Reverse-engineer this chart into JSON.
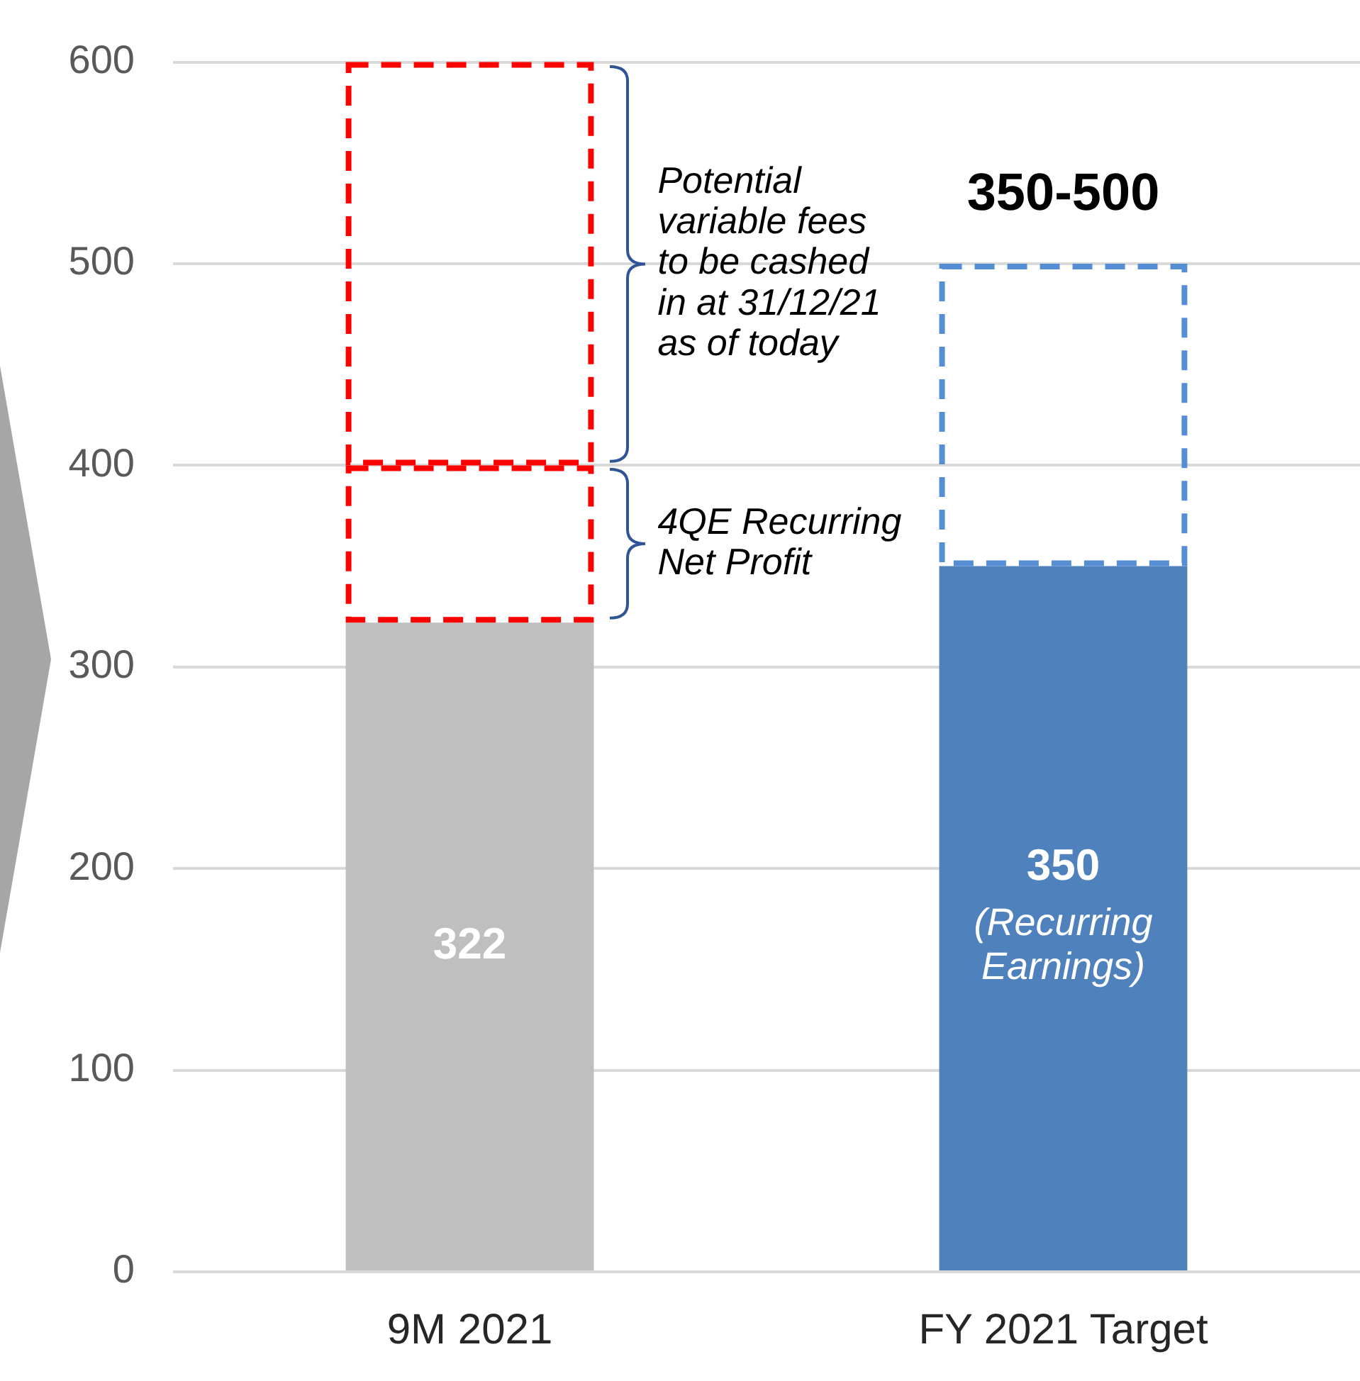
{
  "chart_data": {
    "type": "bar",
    "categories": [
      "9M 2021",
      "FY 2021 Target"
    ],
    "stacked": true,
    "series": [
      {
        "colors": [
          "#bfbfbf",
          "#4f81bd"
        ],
        "values": [
          322,
          350
        ],
        "value_labels": [
          "322",
          "350\n(Recurring\nEarnings)"
        ]
      },
      {
        "colors": [
          "#ff0000",
          "#558ed5"
        ],
        "values": [
          78,
          150
        ],
        "line_style": "dashed"
      },
      {
        "color": "#ff0000",
        "values": [
          200,
          null
        ],
        "line_style": "dashed"
      }
    ],
    "ylim": [
      0,
      600
    ],
    "yticks": [
      0,
      100,
      200,
      300,
      400,
      500,
      600
    ],
    "grid": "y",
    "totals": [
      null,
      "350-500"
    ],
    "annotations": [
      "Potential\nvariable fees\nto be cashed\nin at 31/12/21\nas of today",
      "4QE Recurring\nNet Profit"
    ]
  }
}
